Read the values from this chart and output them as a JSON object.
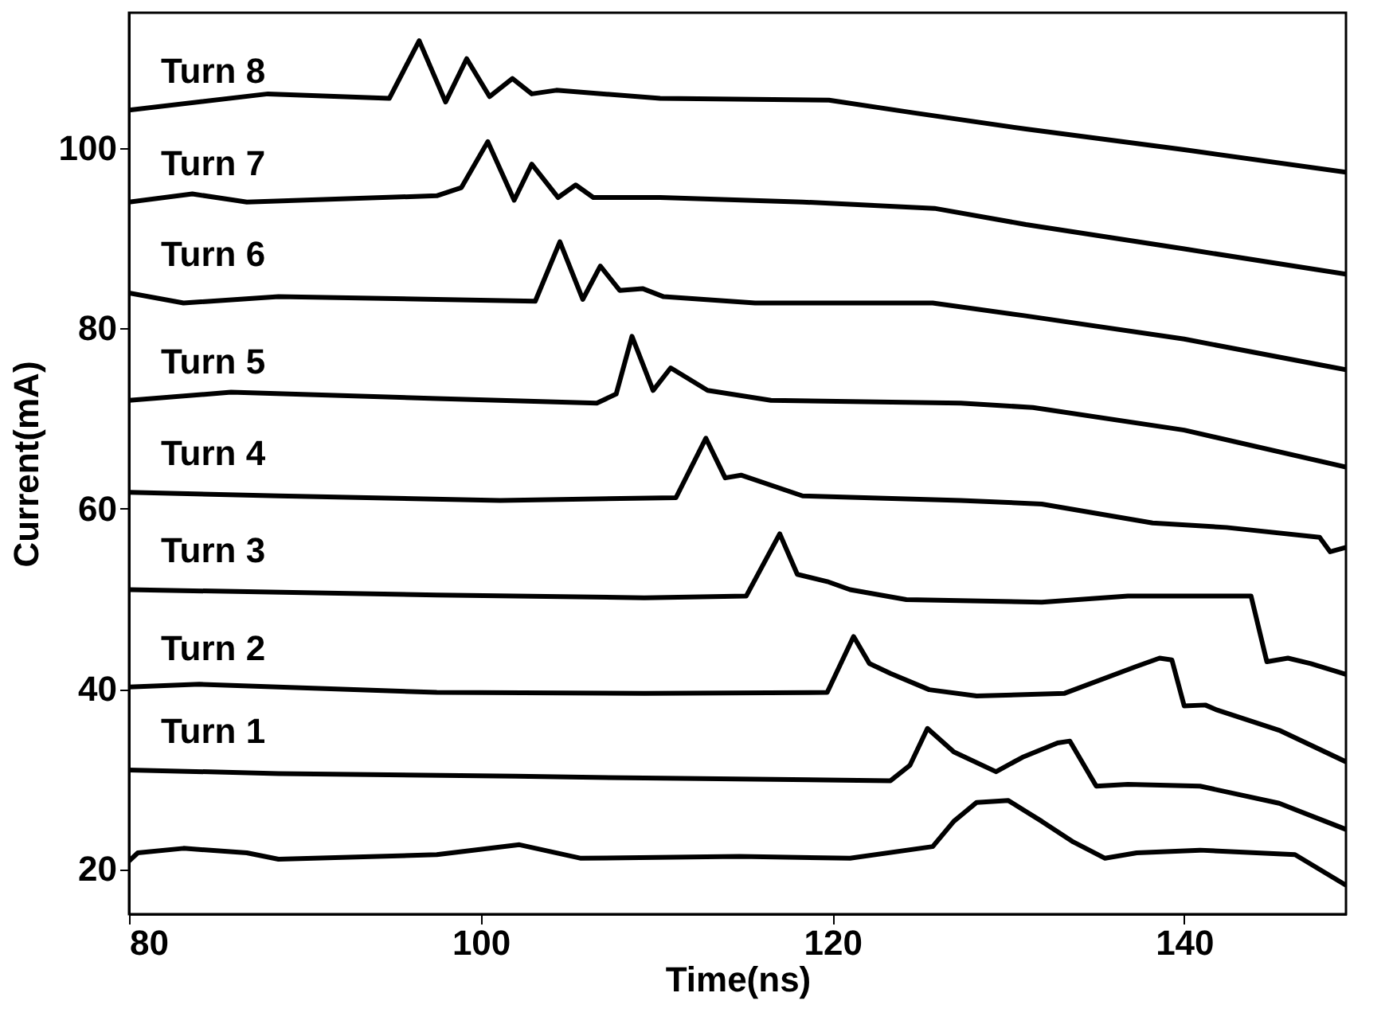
{
  "chart_data": {
    "type": "line",
    "xlabel": "Time(ns)",
    "ylabel": "Current(mA)",
    "xlim": [
      80,
      149.2
    ],
    "xticks": [
      80,
      100,
      120,
      140
    ],
    "ylim": [
      15,
      115
    ],
    "yticks": [
      20,
      40,
      60,
      80,
      100
    ],
    "grid": false,
    "legend": false,
    "marker": "none",
    "line_style": "solid",
    "series": [
      {
        "name": "Turn 8",
        "color": "#000000",
        "x": [
          80,
          87.9,
          94.8,
          96.5,
          98.0,
          99.2,
          100.5,
          101.8,
          102.9,
          104.3,
          110.2,
          119.8,
          124.6,
          131.0,
          140,
          149.2
        ],
        "values": [
          104.2,
          106.0,
          105.5,
          111.9,
          105.1,
          109.9,
          105.7,
          107.7,
          106.0,
          106.4,
          105.5,
          105.3,
          103.9,
          102.1,
          99.8,
          97.3
        ]
      },
      {
        "name": "Turn 7",
        "color": "#000000",
        "x": [
          80,
          83.6,
          86.7,
          97.5,
          98.9,
          100.4,
          101.9,
          102.9,
          104.4,
          105.4,
          106.4,
          110.2,
          118.3,
          125.8,
          131.0,
          140,
          149.2
        ],
        "values": [
          94.0,
          94.9,
          94.0,
          94.7,
          95.6,
          100.7,
          94.2,
          98.2,
          94.5,
          95.9,
          94.5,
          94.5,
          94.0,
          93.3,
          91.5,
          88.8,
          86.0
        ]
      },
      {
        "name": "Turn 6",
        "color": "#000000",
        "x": [
          80,
          83.1,
          88.5,
          97.5,
          103.1,
          104.5,
          105.8,
          106.8,
          107.9,
          109.2,
          110.4,
          115.6,
          125.7,
          130.9,
          140,
          148.1,
          149.2
        ],
        "values": [
          83.9,
          82.8,
          83.5,
          83.2,
          83.0,
          89.6,
          83.2,
          86.9,
          84.2,
          84.4,
          83.5,
          82.8,
          82.8,
          81.4,
          78.8,
          75.8,
          75.4
        ]
      },
      {
        "name": "Turn 5",
        "color": "#000000",
        "x": [
          80,
          85.8,
          97.5,
          106.6,
          107.7,
          108.6,
          109.8,
          110.8,
          112.9,
          116.5,
          127.3,
          131.4,
          140,
          149.2
        ],
        "values": [
          72.0,
          72.9,
          72.2,
          71.7,
          72.7,
          79.1,
          73.1,
          75.6,
          73.1,
          72.0,
          71.7,
          71.2,
          68.7,
          64.6
        ]
      },
      {
        "name": "Turn 4",
        "color": "#000000",
        "x": [
          80,
          88.5,
          101.1,
          111.1,
          112.8,
          113.9,
          114.8,
          118.3,
          127.3,
          131.9,
          138.2,
          142.4,
          147.7,
          148.3,
          149.2
        ],
        "values": [
          61.8,
          61.4,
          60.9,
          61.2,
          67.8,
          63.4,
          63.7,
          61.4,
          60.9,
          60.5,
          58.4,
          57.9,
          56.8,
          55.2,
          55.7
        ]
      },
      {
        "name": "Turn 3",
        "color": "#000000",
        "x": [
          80,
          97.5,
          109.3,
          115.1,
          117.0,
          118.0,
          119.7,
          121.0,
          124.2,
          131.9,
          136.8,
          142.7,
          143.8,
          144.7,
          145.9,
          147.2,
          149.2
        ],
        "values": [
          51.0,
          50.4,
          50.1,
          50.3,
          57.2,
          52.7,
          51.9,
          51.0,
          49.9,
          49.6,
          50.3,
          50.3,
          50.3,
          43.0,
          43.4,
          42.8,
          41.6
        ]
      },
      {
        "name": "Turn 2",
        "color": "#000000",
        "x": [
          80,
          84.0,
          97.5,
          109.3,
          119.7,
          121.2,
          122.1,
          123.3,
          125.5,
          128.2,
          133.2,
          137.3,
          138.6,
          139.3,
          140.0,
          141.2,
          141.8,
          145.4,
          149.2
        ],
        "values": [
          40.2,
          40.5,
          39.6,
          39.5,
          39.6,
          45.8,
          42.8,
          41.7,
          39.9,
          39.2,
          39.5,
          42.5,
          43.4,
          43.2,
          38.1,
          38.2,
          37.7,
          35.4,
          31.9
        ]
      },
      {
        "name": "Turn 1",
        "color": "#000000",
        "x": [
          80,
          88.5,
          102.0,
          109.3,
          123.3,
          124.4,
          125.4,
          126.9,
          129.3,
          130.8,
          132.8,
          133.5,
          135.0,
          136.8,
          140.9,
          145.4,
          149.2
        ],
        "values": [
          31.0,
          30.6,
          30.3,
          30.1,
          29.8,
          31.5,
          35.6,
          33.0,
          30.8,
          32.4,
          34.0,
          34.2,
          29.2,
          29.4,
          29.2,
          27.3,
          24.4
        ]
      },
      {
        "color": "#000000",
        "x": [
          80,
          80.5,
          83.1,
          86.7,
          88.5,
          97.5,
          102.2,
          105.7,
          114.7,
          121.0,
          125.7,
          126.9,
          128.2,
          130.0,
          131.9,
          133.7,
          135.5,
          137.3,
          140.9,
          146.3,
          149.2
        ],
        "values": [
          20.9,
          21.8,
          22.3,
          21.8,
          21.1,
          21.6,
          22.7,
          21.2,
          21.4,
          21.2,
          22.5,
          25.3,
          27.4,
          27.6,
          25.3,
          23.0,
          21.2,
          21.8,
          22.1,
          21.6,
          18.2
        ]
      }
    ]
  }
}
